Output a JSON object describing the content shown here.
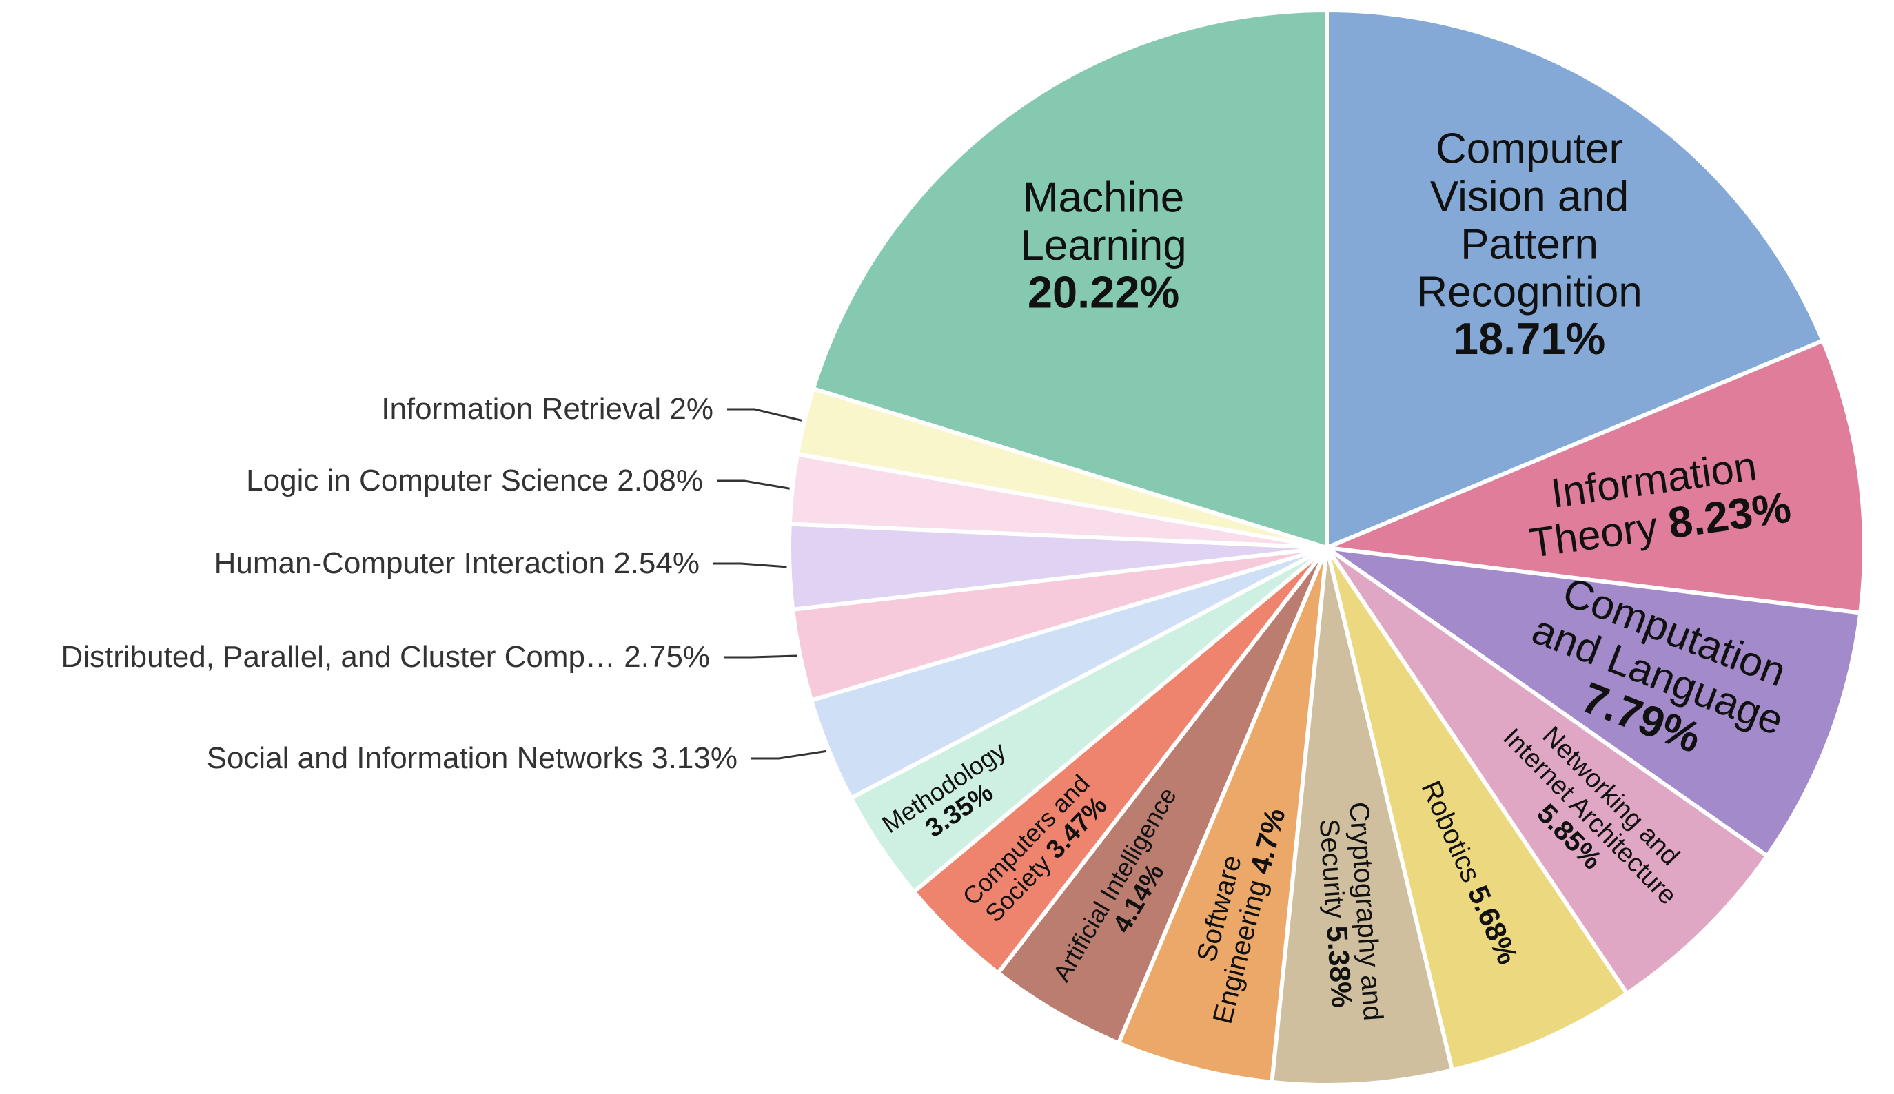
{
  "chart_data": {
    "type": "pie",
    "title": "",
    "start_angle_deg": 0,
    "direction": "clockwise",
    "slices": [
      {
        "label": "Computer Vision and Pattern Recognition",
        "value": 18.71,
        "value_text": "18.71%",
        "color": "#84A9D6",
        "label_style": "inside",
        "lines": [
          "Computer",
          "Vision and",
          "Pattern",
          "Recognition"
        ],
        "rotate": false,
        "font": 62
      },
      {
        "label": "Information Theory",
        "value": 8.23,
        "value_text": "8.23%",
        "color": "#E07D9B",
        "label_style": "inside",
        "lines": [
          "Information",
          "Theory 8.23%"
        ],
        "rotate": true,
        "font": 60
      },
      {
        "label": "Computation and Language",
        "value": 7.79,
        "value_text": "7.79%",
        "color": "#A38ACB",
        "label_style": "inside",
        "lines": [
          "Computation",
          "and Language",
          "7.79%"
        ],
        "rotate": true,
        "font": 60
      },
      {
        "label": "Networking and Internet Architecture",
        "value": 5.85,
        "value_text": "5.85%",
        "color": "#DFA7C3",
        "label_style": "inside",
        "lines": [
          "Networking and",
          "Internet Architecture",
          "5.85%"
        ],
        "rotate": true,
        "font": 38
      },
      {
        "label": "Robotics",
        "value": 5.68,
        "value_text": "5.68%",
        "color": "#ECD87E",
        "label_style": "inside",
        "lines": [
          "Robotics 5.68%"
        ],
        "rotate": true,
        "font": 40
      },
      {
        "label": "Cryptography and Security",
        "value": 5.38,
        "value_text": "5.38%",
        "color": "#CFBF9F",
        "label_style": "inside",
        "lines": [
          "Cryptography and",
          "Security 5.38%"
        ],
        "rotate": true,
        "font": 40
      },
      {
        "label": "Software Engineering",
        "value": 4.7,
        "value_text": "4.7%",
        "color": "#EBA868",
        "label_style": "inside",
        "lines": [
          "Software",
          "Engineering 4.7%"
        ],
        "rotate": true,
        "font": 40
      },
      {
        "label": "Artificial Intelligence",
        "value": 4.14,
        "value_text": "4.14%",
        "color": "#BA7D6F",
        "label_style": "inside",
        "lines": [
          "Artificial Intelligence",
          "4.14%"
        ],
        "rotate": true,
        "font": 36
      },
      {
        "label": "Computers and Society",
        "value": 3.47,
        "value_text": "3.47%",
        "color": "#EE846D",
        "label_style": "inside",
        "lines": [
          "Computers and",
          "Society 3.47%"
        ],
        "rotate": true,
        "font": 36
      },
      {
        "label": "Methodology",
        "value": 3.35,
        "value_text": "3.35%",
        "color": "#CDF0E3",
        "label_style": "inside",
        "lines": [
          "Methodology",
          "3.35%"
        ],
        "rotate": true,
        "font": 36
      },
      {
        "label": "Social and Information Networks",
        "value": 3.13,
        "value_text": "3.13%",
        "color": "#CFE0F6",
        "label_style": "outside"
      },
      {
        "label": "Distributed, Parallel, and Cluster Comp…",
        "value": 2.75,
        "value_text": "2.75%",
        "color": "#F6CADB",
        "label_style": "outside"
      },
      {
        "label": "Human-Computer Interaction",
        "value": 2.54,
        "value_text": "2.54%",
        "color": "#DFD2F2",
        "label_style": "outside"
      },
      {
        "label": "Logic in Computer Science",
        "value": 2.08,
        "value_text": "2.08%",
        "color": "#F9DDEB",
        "label_style": "outside"
      },
      {
        "label": "Information Retrieval",
        "value": 2.0,
        "value_text": "2%",
        "color": "#FAF6CC",
        "label_style": "outside"
      },
      {
        "label": "Machine Learning",
        "value": 20.22,
        "value_text": "20.22%",
        "color": "#86C9B1",
        "label_style": "inside",
        "lines": [
          "Machine",
          "Learning"
        ],
        "rotate": false,
        "font": 62
      }
    ]
  }
}
